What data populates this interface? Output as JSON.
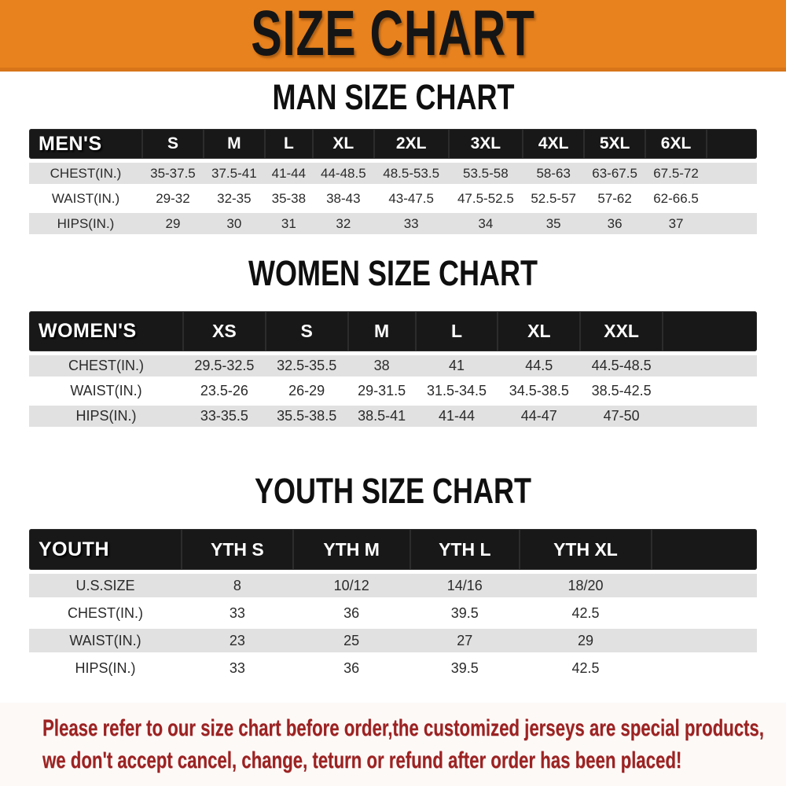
{
  "banner": {
    "title": "SIZE CHART"
  },
  "chart_data": [
    {
      "type": "table",
      "title": "MAN SIZE CHART",
      "corner_label": "MEN'S",
      "columns": [
        "S",
        "M",
        "L",
        "XL",
        "2XL",
        "3XL",
        "4XL",
        "5XL",
        "6XL"
      ],
      "rows": [
        [
          "CHEST(IN.)",
          "35-37.5",
          "37.5-41",
          "41-44",
          "44-48.5",
          "48.5-53.5",
          "53.5-58",
          "58-63",
          "63-67.5",
          "67.5-72"
        ],
        [
          "WAIST(IN.)",
          "29-32",
          "32-35",
          "35-38",
          "38-43",
          "43-47.5",
          "47.5-52.5",
          "52.5-57",
          "57-62",
          "62-66.5"
        ],
        [
          "HIPS(IN.)",
          "29",
          "30",
          "31",
          "32",
          "33",
          "34",
          "35",
          "36",
          "37"
        ]
      ]
    },
    {
      "type": "table",
      "title": "WOMEN SIZE CHART",
      "corner_label": "WOMEN'S",
      "columns": [
        "XS",
        "S",
        "M",
        "L",
        "XL",
        "XXL"
      ],
      "rows": [
        [
          "CHEST(IN.)",
          "29.5-32.5",
          "32.5-35.5",
          "38",
          "41",
          "44.5",
          "44.5-48.5"
        ],
        [
          "WAIST(IN.)",
          "23.5-26",
          "26-29",
          "29-31.5",
          "31.5-34.5",
          "34.5-38.5",
          "38.5-42.5"
        ],
        [
          "HIPS(IN.)",
          "33-35.5",
          "35.5-38.5",
          "38.5-41",
          "41-44",
          "44-47",
          "47-50"
        ]
      ]
    },
    {
      "type": "table",
      "title": "YOUTH SIZE CHART",
      "corner_label": "YOUTH",
      "columns": [
        "YTH S",
        "YTH M",
        "YTH L",
        "YTH XL"
      ],
      "rows": [
        [
          "U.S.SIZE",
          "8",
          "10/12",
          "14/16",
          "18/20"
        ],
        [
          "CHEST(IN.)",
          "33",
          "36",
          "39.5",
          "42.5"
        ],
        [
          "WAIST(IN.)",
          "23",
          "25",
          "27",
          "29"
        ],
        [
          "HIPS(IN.)",
          "33",
          "36",
          "39.5",
          "42.5"
        ]
      ]
    }
  ],
  "footer": {
    "line1": "Please refer to our size chart before order,the customized jerseys are special products,",
    "line2": "we don't accept cancel, change, teturn or refund after order has been placed!"
  },
  "colors": {
    "banner_orange": "#E8821E",
    "banner_border": "#D8751A",
    "header_black": "#181818",
    "row_gray": "#E1E1E1",
    "note_red": "#9D2222"
  }
}
